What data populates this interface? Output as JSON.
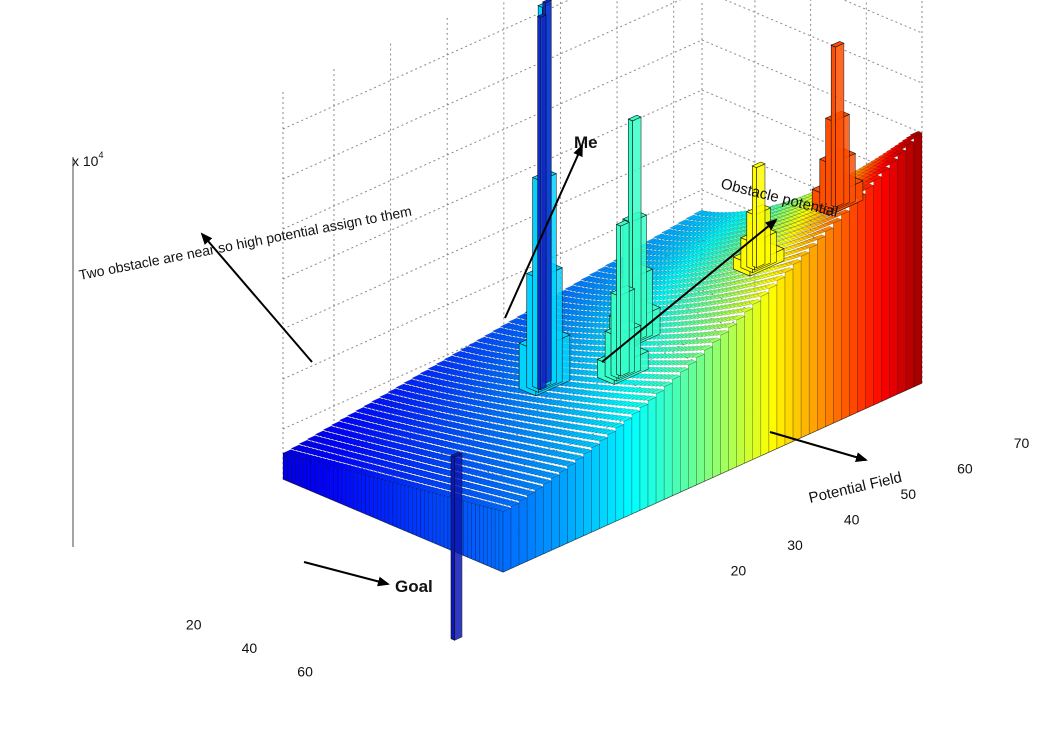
{
  "chart_data": {
    "type": "3d-bar",
    "title": "",
    "xlabel": "",
    "ylabel": "",
    "zlabel": "",
    "z_multiplier": "x 10",
    "z_multiplier_exp": "4",
    "x_ticks": [
      "20",
      "40",
      "60"
    ],
    "y_ticks": [
      "20",
      "30",
      "40",
      "50",
      "60",
      "70"
    ],
    "x_range": [
      1,
      80
    ],
    "y_range": [
      1,
      75
    ],
    "grid": true,
    "colormap": "jet",
    "surface_description": "Potential rises from goal corner toward far corner",
    "peaks": [
      {
        "x": 45,
        "y": 10,
        "height": 1.6,
        "kind": "goal"
      },
      {
        "x": 40,
        "y": 28,
        "height": 3.8,
        "kind": "obstacle-pair"
      },
      {
        "x": 48,
        "y": 40,
        "height": 2.2,
        "kind": "obstacle"
      },
      {
        "x": 60,
        "y": 32,
        "height": 1.5,
        "kind": "obstacle"
      },
      {
        "x": 62,
        "y": 55,
        "height": 1.0,
        "kind": "me"
      },
      {
        "x": 70,
        "y": 65,
        "height": 1.6,
        "kind": "obstacle"
      }
    ],
    "annotations": [
      {
        "text": "Two obstacle are near so high potential assign to them"
      },
      {
        "text": "Me"
      },
      {
        "text": "Obstacle potential"
      },
      {
        "text": "Potential Field"
      },
      {
        "text": "Goal"
      }
    ]
  }
}
